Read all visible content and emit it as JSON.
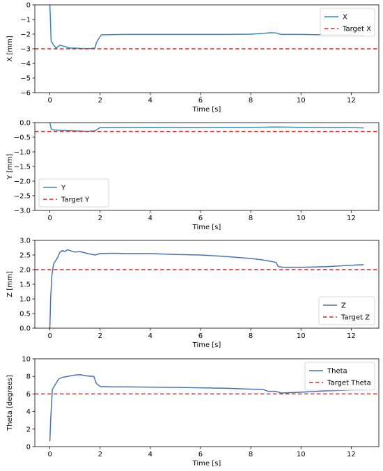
{
  "chart_data": [
    {
      "type": "line",
      "xlabel": "Time [s]",
      "ylabel": "X [mm]",
      "xlim": [
        -0.6,
        13.1
      ],
      "ylim": [
        -6,
        0
      ],
      "xticks": [
        "0",
        "2",
        "4",
        "6",
        "8",
        "10",
        "12"
      ],
      "yticks": [
        "0",
        "−1",
        "−2",
        "−3",
        "−4",
        "−5",
        "−6"
      ],
      "legend_position": "upper-right",
      "series": [
        {
          "name": "X",
          "color": "#3a88b8",
          "style": "solid",
          "x": [
            0,
            0.02,
            0.05,
            0.1,
            0.15,
            0.25,
            0.4,
            0.6,
            0.8,
            1.0,
            1.3,
            1.6,
            1.8,
            1.85,
            1.95,
            2.05,
            2.5,
            3.0,
            4.0,
            5.0,
            6.0,
            7.0,
            8.0,
            8.5,
            8.8,
            9.0,
            9.2,
            10.0,
            11.0,
            12.0,
            12.5
          ],
          "y": [
            0,
            -1.0,
            -2.5,
            -2.6,
            -2.75,
            -2.95,
            -2.75,
            -2.85,
            -2.95,
            -2.95,
            -2.98,
            -2.98,
            -2.95,
            -2.6,
            -2.3,
            -2.05,
            -2.03,
            -2.02,
            -2.02,
            -2.02,
            -2.02,
            -2.02,
            -2.0,
            -1.95,
            -1.9,
            -1.92,
            -2.02,
            -2.02,
            -2.05,
            -2.05,
            -2.08
          ]
        },
        {
          "name": "Target X",
          "color": "#d62728",
          "style": "dashed",
          "y_const": -3
        }
      ]
    },
    {
      "type": "line",
      "xlabel": "Time [s]",
      "ylabel": "Y [mm]",
      "xlim": [
        -0.6,
        13.1
      ],
      "ylim": [
        -3.0,
        0.0
      ],
      "xticks": [
        "0",
        "2",
        "4",
        "6",
        "8",
        "10",
        "12"
      ],
      "yticks": [
        "0.0",
        "−0.5",
        "−1.0",
        "−1.5",
        "−2.0",
        "−2.5",
        "−3.0"
      ],
      "legend_position": "lower-left",
      "series": [
        {
          "name": "Y",
          "color": "#3a88b8",
          "style": "solid",
          "x": [
            0,
            0.05,
            0.1,
            0.3,
            0.5,
            1.0,
            1.5,
            1.8,
            2.0,
            3.0,
            4.0,
            5.0,
            6.0,
            7.0,
            8.0,
            9.0,
            10.0,
            11.0,
            12.0,
            12.5
          ],
          "y": [
            0.0,
            -0.2,
            -0.24,
            -0.26,
            -0.27,
            -0.28,
            -0.3,
            -0.28,
            -0.17,
            -0.17,
            -0.16,
            -0.17,
            -0.17,
            -0.16,
            -0.16,
            -0.15,
            -0.16,
            -0.17,
            -0.17,
            -0.18
          ]
        },
        {
          "name": "Target Y",
          "color": "#d62728",
          "style": "dashed",
          "y_const": -0.3
        }
      ]
    },
    {
      "type": "line",
      "xlabel": "Time [s]",
      "ylabel": "Z [mm]",
      "xlim": [
        -0.6,
        13.1
      ],
      "ylim": [
        0.0,
        3.0
      ],
      "xticks": [
        "0",
        "2",
        "4",
        "6",
        "8",
        "10",
        "12"
      ],
      "yticks": [
        "3.0",
        "2.5",
        "2.0",
        "1.5",
        "1.0",
        "0.5",
        "0.0"
      ],
      "legend_position": "lower-right",
      "series": [
        {
          "name": "Z",
          "color": "#4a72b0",
          "style": "solid",
          "x": [
            0,
            0.03,
            0.08,
            0.15,
            0.3,
            0.4,
            0.5,
            0.6,
            0.7,
            0.8,
            1.0,
            1.2,
            1.5,
            1.8,
            2.0,
            2.5,
            3.0,
            4.0,
            5.0,
            6.0,
            7.0,
            8.0,
            8.5,
            8.8,
            9.0,
            9.1,
            9.3,
            10.0,
            11.0,
            12.0,
            12.5
          ],
          "y": [
            0.0,
            1.0,
            1.8,
            2.2,
            2.4,
            2.6,
            2.65,
            2.62,
            2.68,
            2.65,
            2.6,
            2.62,
            2.55,
            2.5,
            2.55,
            2.56,
            2.55,
            2.55,
            2.52,
            2.5,
            2.45,
            2.38,
            2.33,
            2.28,
            2.25,
            2.1,
            2.08,
            2.08,
            2.1,
            2.15,
            2.17
          ]
        },
        {
          "name": "Target Z",
          "color": "#d62728",
          "style": "dashed",
          "y_const": 2.0
        }
      ]
    },
    {
      "type": "line",
      "xlabel": "Time [s]",
      "ylabel": "Theta [degrees]",
      "xlim": [
        -0.6,
        13.1
      ],
      "ylim": [
        0,
        10
      ],
      "xticks": [
        "0",
        "2",
        "4",
        "6",
        "8",
        "10",
        "12"
      ],
      "yticks": [
        "10",
        "8",
        "6",
        "4",
        "2",
        "0"
      ],
      "legend_position": "upper-right",
      "series": [
        {
          "name": "Theta",
          "color": "#4a72b0",
          "style": "solid",
          "x": [
            0,
            0.03,
            0.1,
            0.2,
            0.35,
            0.5,
            0.7,
            0.9,
            1.0,
            1.2,
            1.5,
            1.75,
            1.85,
            2.0,
            2.5,
            3.0,
            4.0,
            5.0,
            6.0,
            7.0,
            8.0,
            8.5,
            8.7,
            9.0,
            9.2,
            10.0,
            11.0,
            12.0,
            12.5
          ],
          "y": [
            0.6,
            3.0,
            6.5,
            7.0,
            7.7,
            7.9,
            8.0,
            8.1,
            8.15,
            8.2,
            8.05,
            8.0,
            7.2,
            6.85,
            6.8,
            6.8,
            6.78,
            6.75,
            6.7,
            6.65,
            6.55,
            6.5,
            6.3,
            6.3,
            6.1,
            6.2,
            6.35,
            6.45,
            6.5
          ]
        },
        {
          "name": "Target Theta",
          "color": "#d62728",
          "style": "dashed",
          "y_const": 6
        }
      ]
    }
  ]
}
